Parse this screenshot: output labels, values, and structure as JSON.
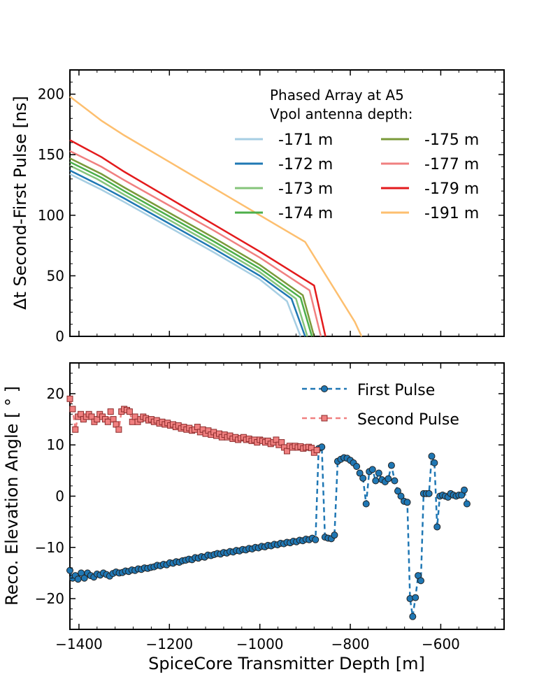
{
  "chart_data": [
    {
      "type": "line",
      "title": "",
      "xlabel": "",
      "ylabel": "Δt Second-First Pulse [ns]",
      "xlim": [
        -1420,
        -460
      ],
      "ylim": [
        0,
        220
      ],
      "xticks": [
        -1400,
        -1200,
        -1000,
        -800,
        -600
      ],
      "yticks": [
        0,
        50,
        100,
        150,
        200
      ],
      "ytick_labels": [
        "0",
        "50",
        "100",
        "150",
        "200"
      ],
      "legend": {
        "title_lines": [
          "Phased Array at A5",
          "Vpol antenna depth:"
        ],
        "location": "top-right",
        "columns": 2
      },
      "series": [
        {
          "name": "-171 m",
          "color": "#a6cee3",
          "x": [
            -1420,
            -1350,
            -1300,
            -1200,
            -1100,
            -1000,
            -940,
            -910
          ],
          "y": [
            134,
            121,
            111,
            90,
            69,
            47,
            29,
            0
          ]
        },
        {
          "name": "-172 m",
          "color": "#1f78b4",
          "x": [
            -1420,
            -1350,
            -1300,
            -1200,
            -1100,
            -1000,
            -930,
            -900
          ],
          "y": [
            137,
            124,
            114,
            93,
            72,
            50,
            31,
            0
          ]
        },
        {
          "name": "-173 m",
          "color": "#85c47a",
          "x": [
            -1420,
            -1360,
            -1300,
            -1200,
            -1100,
            -1000,
            -920,
            -895
          ],
          "y": [
            141,
            130,
            117,
            96,
            75,
            53,
            31,
            0
          ]
        },
        {
          "name": "-174 m",
          "color": "#4daf4a",
          "x": [
            -1420,
            -1350,
            -1300,
            -1200,
            -1100,
            -1000,
            -910,
            -885
          ],
          "y": [
            144,
            131,
            120,
            99,
            78,
            56,
            32,
            0
          ]
        },
        {
          "name": "-175 m",
          "color": "#7a9a3a",
          "x": [
            -1420,
            -1350,
            -1300,
            -1200,
            -1100,
            -1000,
            -905,
            -880
          ],
          "y": [
            147,
            134,
            123,
            102,
            81,
            59,
            34,
            0
          ]
        },
        {
          "name": "-177 m",
          "color": "#f08080",
          "x": [
            -1420,
            -1350,
            -1300,
            -1200,
            -1100,
            -1000,
            -890,
            -865
          ],
          "y": [
            153,
            140,
            129,
            108,
            87,
            65,
            38,
            0
          ]
        },
        {
          "name": "-179 m",
          "color": "#e31a1c",
          "x": [
            -1420,
            -1350,
            -1300,
            -1200,
            -1100,
            -1000,
            -880,
            -855
          ],
          "y": [
            162,
            148,
            136,
            114,
            92,
            70,
            42,
            0
          ]
        },
        {
          "name": "-191 m",
          "color": "#fdbf6f",
          "x": [
            -1420,
            -1350,
            -1300,
            -1200,
            -1100,
            -1000,
            -900,
            -790,
            -775
          ],
          "y": [
            198,
            178,
            166,
            144,
            122,
            100,
            78,
            12,
            0
          ]
        }
      ]
    },
    {
      "type": "line",
      "title": "",
      "xlabel": "SpiceCore Transmitter Depth [m]",
      "ylabel": "Reco. Elevation Angle [ ° ]",
      "xlim": [
        -1420,
        -460
      ],
      "ylim": [
        -26,
        26
      ],
      "xticks": [
        -1400,
        -1200,
        -1000,
        -800,
        -600
      ],
      "xtick_labels": [
        "−1400",
        "−1200",
        "−1000",
        "−800",
        "−600"
      ],
      "yticks": [
        -20,
        -10,
        0,
        10,
        20
      ],
      "ytick_labels": [
        "−20",
        "−10",
        "0",
        "10",
        "20"
      ],
      "legend": {
        "location": "top-right",
        "columns": 1
      },
      "series": [
        {
          "name": "First Pulse",
          "color": "#1f77b4",
          "marker": "circle",
          "linestyle": "dashed",
          "x": [
            -1420,
            -1414,
            -1408,
            -1402,
            -1395,
            -1388,
            -1381,
            -1374,
            -1367,
            -1360,
            -1353,
            -1346,
            -1339,
            -1332,
            -1325,
            -1318,
            -1311,
            -1304,
            -1297,
            -1290,
            -1283,
            -1276,
            -1269,
            -1262,
            -1255,
            -1248,
            -1241,
            -1234,
            -1227,
            -1220,
            -1213,
            -1206,
            -1199,
            -1192,
            -1185,
            -1178,
            -1171,
            -1164,
            -1157,
            -1150,
            -1143,
            -1136,
            -1129,
            -1122,
            -1115,
            -1108,
            -1101,
            -1094,
            -1087,
            -1080,
            -1073,
            -1066,
            -1059,
            -1052,
            -1045,
            -1038,
            -1031,
            -1024,
            -1017,
            -1010,
            -1003,
            -996,
            -989,
            -982,
            -975,
            -968,
            -961,
            -954,
            -947,
            -940,
            -933,
            -926,
            -919,
            -912,
            -905,
            -898,
            -891,
            -884,
            -877,
            -870,
            -863,
            -856,
            -849,
            -842,
            -835,
            -828,
            -821,
            -814,
            -807,
            -800,
            -793,
            -786,
            -779,
            -772,
            -765,
            -758,
            -751,
            -744,
            -737,
            -730,
            -723,
            -716,
            -709,
            -702,
            -695,
            -688,
            -681,
            -674,
            -668,
            -662,
            -656,
            -650,
            -644,
            -638,
            -632,
            -626,
            -620,
            -614,
            -608,
            -602,
            -596,
            -590,
            -584,
            -578,
            -572,
            -566,
            -560,
            -554,
            -548,
            -542
          ],
          "y": [
            -14.5,
            -16.0,
            -15.5,
            -16.2,
            -15.0,
            -16.0,
            -15.0,
            -15.5,
            -15.8,
            -15.2,
            -15.4,
            -15.0,
            -15.3,
            -15.6,
            -15.1,
            -14.8,
            -15.0,
            -14.9,
            -14.6,
            -14.7,
            -14.4,
            -14.5,
            -14.2,
            -14.3,
            -14.0,
            -14.1,
            -13.9,
            -13.8,
            -13.5,
            -13.6,
            -13.3,
            -13.4,
            -13.0,
            -13.1,
            -12.8,
            -12.9,
            -12.6,
            -12.5,
            -12.3,
            -12.4,
            -12.0,
            -12.1,
            -11.8,
            -11.9,
            -11.5,
            -11.6,
            -11.4,
            -11.2,
            -11.3,
            -11.0,
            -11.1,
            -10.8,
            -10.9,
            -10.6,
            -10.7,
            -10.4,
            -10.5,
            -10.2,
            -10.3,
            -10.0,
            -10.1,
            -9.8,
            -9.9,
            -9.6,
            -9.7,
            -9.4,
            -9.5,
            -9.2,
            -9.3,
            -9.0,
            -9.1,
            -8.8,
            -8.9,
            -8.6,
            -8.7,
            -8.4,
            -8.5,
            -8.2,
            -8.5,
            9.3,
            9.6,
            -8.0,
            -8.2,
            -8.3,
            -7.6,
            6.8,
            7.2,
            7.5,
            7.4,
            7.0,
            6.5,
            5.8,
            4.5,
            3.5,
            -1.5,
            4.8,
            5.2,
            3.0,
            4.5,
            3.2,
            2.8,
            3.4,
            6.0,
            3.0,
            1.0,
            0.0,
            -1.0,
            -1.2,
            -20.0,
            -23.5,
            -19.8,
            -15.5,
            -16.5,
            0.5,
            0.5,
            0.5,
            7.8,
            6.5,
            -6.0,
            0.0,
            0.2,
            0.0,
            -0.2,
            0.5,
            0.2,
            0.0,
            0.2,
            0.2,
            1.2,
            -1.5
          ],
          "extra": {
            "x": [
              -548,
              -542
            ],
            "y": [
              0.6,
              1.2
            ]
          }
        },
        {
          "name": "Second Pulse",
          "color": "#f08080",
          "marker": "square",
          "linestyle": "dashed",
          "x": [
            -1420,
            -1414,
            -1408,
            -1402,
            -1396,
            -1390,
            -1384,
            -1378,
            -1372,
            -1366,
            -1360,
            -1354,
            -1348,
            -1342,
            -1336,
            -1330,
            -1324,
            -1318,
            -1312,
            -1306,
            -1300,
            -1294,
            -1288,
            -1282,
            -1276,
            -1270,
            -1264,
            -1258,
            -1252,
            -1246,
            -1240,
            -1234,
            -1228,
            -1222,
            -1216,
            -1210,
            -1204,
            -1198,
            -1192,
            -1186,
            -1180,
            -1174,
            -1168,
            -1162,
            -1156,
            -1150,
            -1144,
            -1138,
            -1132,
            -1126,
            -1120,
            -1114,
            -1108,
            -1102,
            -1096,
            -1090,
            -1084,
            -1078,
            -1072,
            -1066,
            -1060,
            -1054,
            -1048,
            -1042,
            -1036,
            -1030,
            -1024,
            -1018,
            -1012,
            -1006,
            -1000,
            -994,
            -988,
            -982,
            -976,
            -970,
            -964,
            -958,
            -952,
            -946,
            -940,
            -934,
            -928,
            -922,
            -916,
            -910,
            -904,
            -898,
            -892,
            -886,
            -880,
            -874
          ],
          "y": [
            19.0,
            17.0,
            13.0,
            15.5,
            16.0,
            15.0,
            15.5,
            16.0,
            15.5,
            14.5,
            15.0,
            16.0,
            15.5,
            15.0,
            14.5,
            16.5,
            15.0,
            14.0,
            13.0,
            16.5,
            17.0,
            16.8,
            16.5,
            14.5,
            15.5,
            14.5,
            15.0,
            15.5,
            15.2,
            14.8,
            15.0,
            14.5,
            14.8,
            14.2,
            14.5,
            14.0,
            14.3,
            13.8,
            14.0,
            13.5,
            13.8,
            13.2,
            13.5,
            13.0,
            13.3,
            12.8,
            13.0,
            13.5,
            12.5,
            13.0,
            12.2,
            12.8,
            12.0,
            12.5,
            11.8,
            12.2,
            11.5,
            12.0,
            11.5,
            11.8,
            11.2,
            11.5,
            11.0,
            11.3,
            11.5,
            11.0,
            11.2,
            10.8,
            11.0,
            10.5,
            11.0,
            10.8,
            10.5,
            10.8,
            10.2,
            10.5,
            11.0,
            10.0,
            10.5,
            9.5,
            8.8,
            9.8,
            9.5,
            9.8,
            9.5,
            9.7,
            9.3,
            9.5,
            9.6,
            9.4,
            8.5,
            9.0
          ]
        }
      ]
    }
  ]
}
